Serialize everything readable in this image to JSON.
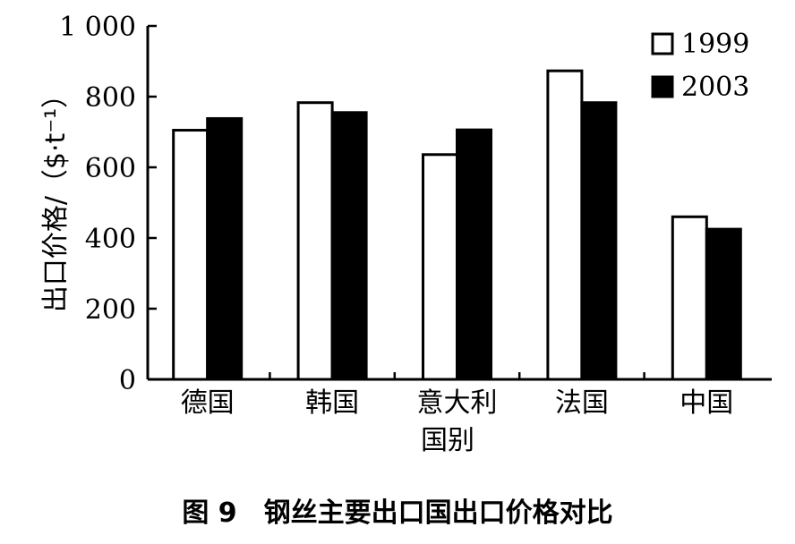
{
  "chart_data": {
    "type": "bar",
    "categories": [
      "德国",
      "韩国",
      "意大利",
      "法国",
      "中国"
    ],
    "series": [
      {
        "name": "1999",
        "values": [
          705,
          783,
          636,
          873,
          460
        ],
        "fill": "#ffffff"
      },
      {
        "name": "2003",
        "values": [
          738,
          755,
          706,
          783,
          425
        ],
        "fill": "#000000"
      }
    ],
    "xlabel": "国别",
    "ylabel": "出口价格/（$·t⁻¹）",
    "ylim": [
      0,
      1000
    ],
    "yticks": [
      0,
      200,
      400,
      600,
      800,
      1000
    ],
    "ytick_labels": [
      "0",
      "200",
      "400",
      "600",
      "800",
      "1 000"
    ],
    "legend_position": "top-right",
    "grid": false
  },
  "caption": "图 9　钢丝主要出口国出口价格对比"
}
